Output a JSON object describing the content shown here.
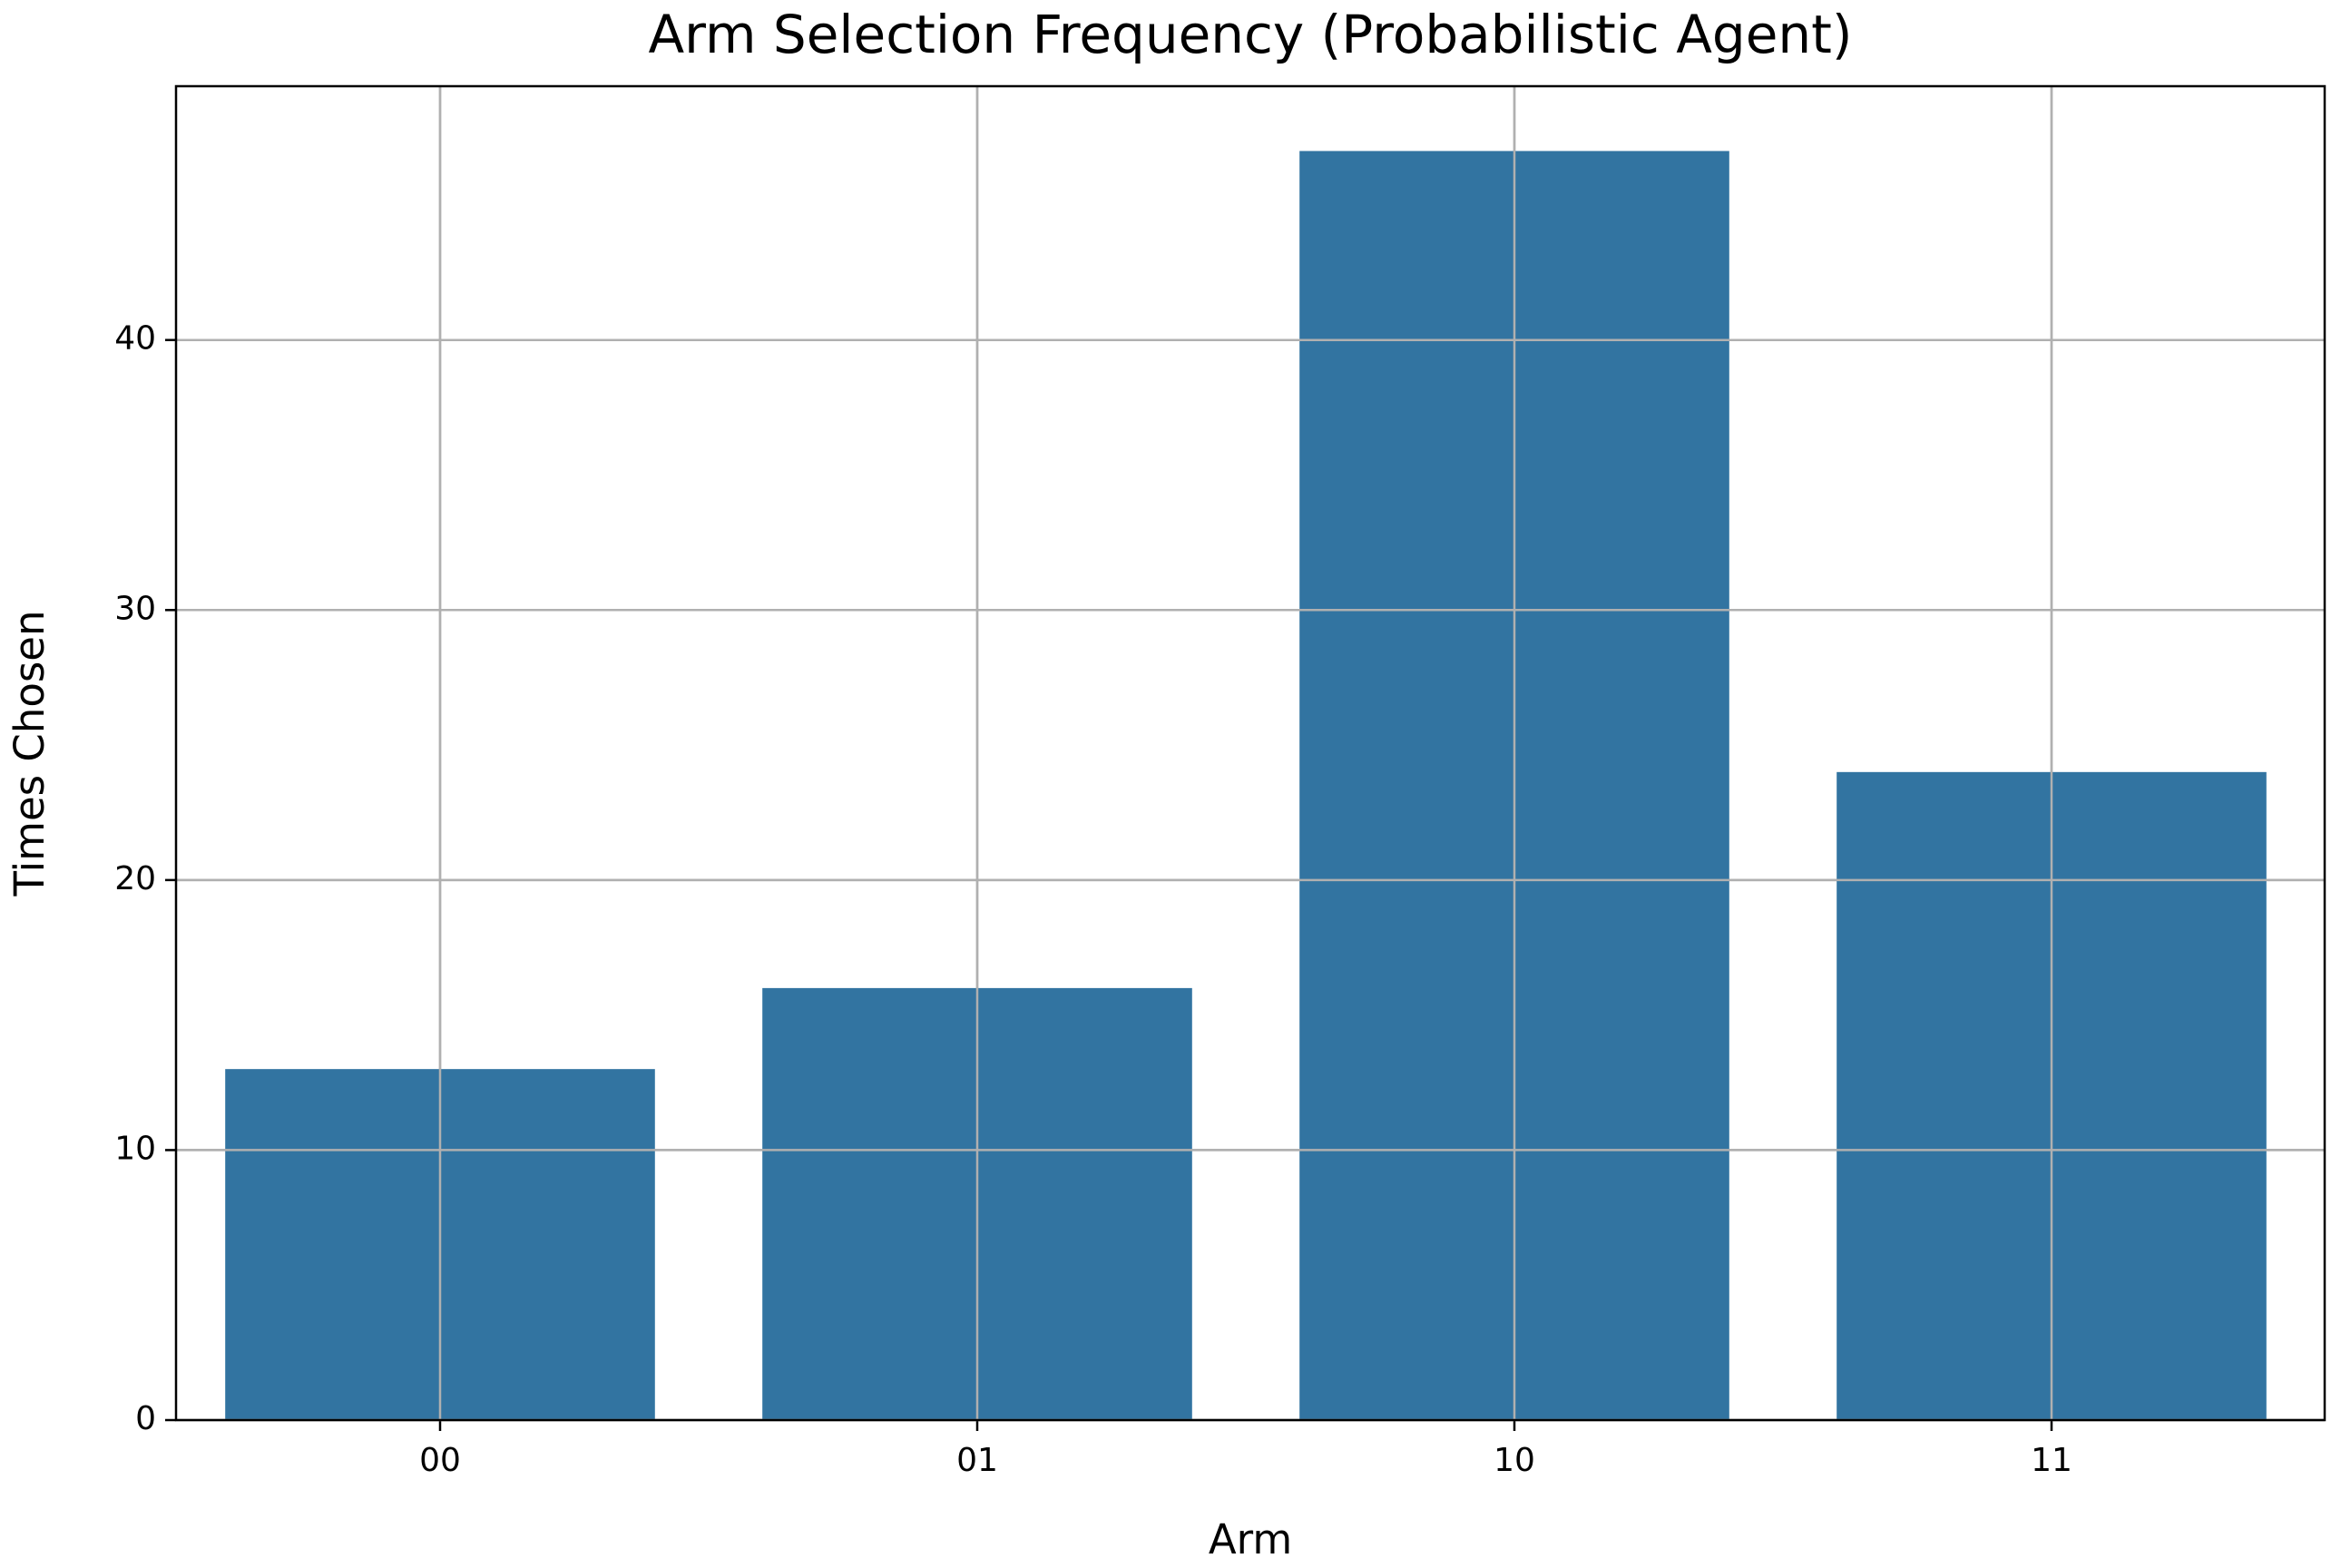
{
  "chart_data": {
    "type": "bar",
    "title": "Arm Selection Frequency (Probabilistic Agent)",
    "x_label": "Arm",
    "y_label": "Times Chosen",
    "categories": [
      "00",
      "01",
      "10",
      "11"
    ],
    "values": [
      13,
      16,
      47,
      24
    ],
    "color": "#3274a1",
    "ylim": [
      0,
      49.4
    ],
    "yticks": [
      0,
      10,
      20,
      30,
      40
    ],
    "grid": true
  }
}
